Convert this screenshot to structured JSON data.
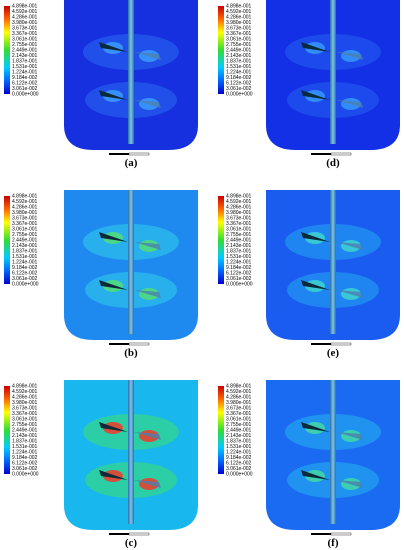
{
  "colorbar": {
    "labels": [
      "4.898e-001",
      "4.592e-001",
      "4.286e-001",
      "3.980e-001",
      "3.673e-001",
      "3.367e-001",
      "3.061e-001",
      "2.755e-001",
      "2.449e-001",
      "2.143e-001",
      "1.837e-001",
      "1.531e-001",
      "1.224e-001",
      "9.184e-002",
      "6.122e-002",
      "3.061e-002",
      "0.000e+000"
    ]
  },
  "panels": [
    {
      "label": "(a)"
    },
    {
      "label": "(d)"
    },
    {
      "label": "(b)"
    },
    {
      "label": "(e)"
    },
    {
      "label": "(c)"
    },
    {
      "label": "(f)"
    }
  ]
}
